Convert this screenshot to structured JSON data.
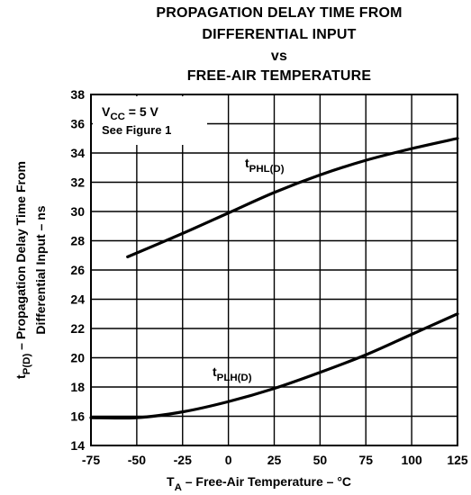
{
  "chart_data": {
    "type": "line",
    "title": [
      "PROPAGATION DELAY TIME FROM",
      "DIFFERENTIAL INPUT",
      "vs",
      "FREE-AIR TEMPERATURE"
    ],
    "xlabel": {
      "main": "T",
      "sub": "A",
      "rest": " – Free-Air Temperature – °C"
    },
    "ylabel": {
      "line1": {
        "main": "t",
        "sub": "P(D)",
        "rest": " – Propagation Delay Time From"
      },
      "line2": "Differential Input – ns"
    },
    "xlim": [
      -75,
      125
    ],
    "ylim": [
      14,
      38
    ],
    "xticks": [
      -75,
      -50,
      -25,
      0,
      25,
      50,
      75,
      100,
      125
    ],
    "yticks": [
      14,
      16,
      18,
      20,
      22,
      24,
      26,
      28,
      30,
      32,
      34,
      36,
      38
    ],
    "grid": true,
    "annotation": {
      "line1": {
        "main": "V",
        "sub": "CC",
        "rest": " = 5 V"
      },
      "line2": "See Figure 1"
    },
    "series": [
      {
        "name": {
          "main": "t",
          "sub": "PHL(D)"
        },
        "x": [
          -55,
          -25,
          0,
          25,
          50,
          75,
          100,
          125
        ],
        "y": [
          26.9,
          28.5,
          29.9,
          31.3,
          32.5,
          33.5,
          34.3,
          35.0
        ]
      },
      {
        "name": {
          "main": "t",
          "sub": "PLH(D)"
        },
        "x": [
          -75,
          -50,
          -25,
          0,
          25,
          50,
          75,
          100,
          125
        ],
        "y": [
          15.9,
          15.9,
          16.3,
          17.0,
          17.9,
          19.0,
          20.2,
          21.6,
          23.0
        ]
      }
    ]
  }
}
